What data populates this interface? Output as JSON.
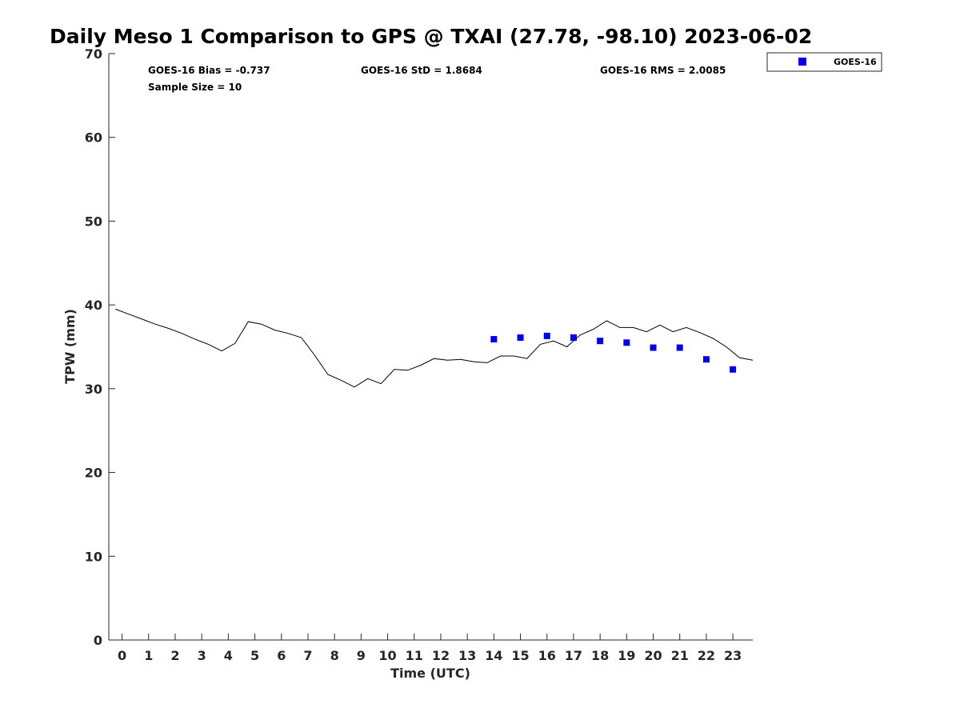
{
  "chart_data": {
    "type": "scatter",
    "title": "Daily Meso 1 Comparison to GPS @ TXAI (27.78, -98.10) 2023-06-02",
    "xlabel": "Time (UTC)",
    "ylabel": "TPW (mm)",
    "xlim": [
      -0.5,
      23.75
    ],
    "ylim": [
      0,
      70
    ],
    "x_ticks": [
      0,
      1,
      2,
      3,
      4,
      5,
      6,
      7,
      8,
      9,
      10,
      11,
      12,
      13,
      14,
      15,
      16,
      17,
      18,
      19,
      20,
      21,
      22,
      23
    ],
    "y_ticks": [
      0,
      10,
      20,
      30,
      40,
      50,
      60,
      70
    ],
    "grid": false,
    "legend_position": "top-right",
    "stats": {
      "bias": "GOES-16 Bias = -0.737",
      "std": "GOES-16 StD = 1.8684",
      "rms": "GOES-16 RMS = 2.0085",
      "sample": "Sample Size = 10"
    },
    "gps_line": {
      "x": [
        -0.25,
        0.25,
        0.75,
        1.25,
        1.75,
        2.25,
        2.75,
        3.25,
        3.75,
        4.25,
        4.75,
        5.25,
        5.75,
        6.25,
        6.75,
        7.25,
        7.75,
        8.25,
        8.75,
        9.25,
        9.75,
        10.25,
        10.75,
        11.25,
        11.75,
        12.25,
        12.75,
        13.25,
        13.75,
        14.25,
        14.75,
        15.25,
        15.75,
        16.25,
        16.75,
        17.25,
        17.75,
        18.25,
        18.75,
        19.25,
        19.75,
        20.25,
        20.75,
        21.25,
        21.75,
        22.25,
        22.75,
        23.25,
        23.75
      ],
      "y": [
        39.5,
        38.9,
        38.3,
        37.7,
        37.2,
        36.6,
        35.9,
        35.3,
        34.5,
        35.4,
        38.0,
        37.7,
        37.0,
        36.6,
        36.1,
        34.0,
        31.7,
        31.0,
        30.2,
        31.2,
        30.6,
        32.3,
        32.2,
        32.8,
        33.6,
        33.4,
        33.5,
        33.2,
        33.1,
        33.9,
        33.9,
        33.6,
        35.3,
        35.7,
        35.0,
        36.4,
        37.1,
        38.1,
        37.3,
        37.3,
        36.8,
        37.6,
        36.8,
        37.3,
        36.7,
        36.0,
        35.0,
        33.7,
        33.4
      ]
    },
    "series": [
      {
        "name": "GOES-16",
        "color": "#0000e6",
        "marker": "square",
        "x": [
          14,
          15,
          16,
          17,
          18,
          19,
          20,
          21,
          22,
          23
        ],
        "y": [
          35.9,
          36.1,
          36.3,
          36.1,
          35.7,
          35.5,
          34.9,
          34.9,
          33.5,
          32.3
        ]
      }
    ]
  }
}
